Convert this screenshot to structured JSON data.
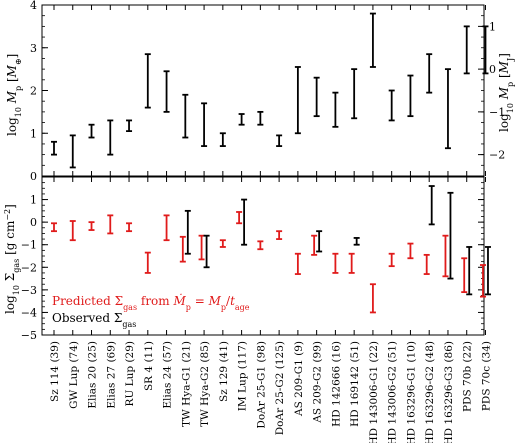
{
  "chart_data": [
    {
      "type": "errorbar",
      "panel": "top",
      "ylabel": "log₁₀ M_p [M⊕]",
      "ylabel_right": "log₁₀ M_p [M_J]",
      "ylim": [
        0,
        4
      ],
      "yticks": [
        0,
        1,
        2,
        3,
        4
      ],
      "yticks_right": [
        -2,
        -1,
        0,
        1
      ],
      "right_axis_offset": 2.5,
      "series": [
        {
          "color": "#000000",
          "intervals": [
            [
              0.5,
              0.8
            ],
            [
              0.2,
              0.95
            ],
            [
              0.9,
              1.2
            ],
            [
              0.5,
              1.3
            ],
            [
              1.05,
              1.3
            ],
            [
              1.6,
              2.85
            ],
            [
              1.5,
              2.45
            ],
            [
              0.9,
              1.9
            ],
            [
              0.7,
              1.7
            ],
            [
              0.7,
              1.0
            ],
            [
              1.2,
              1.45
            ],
            [
              1.2,
              1.5
            ],
            [
              0.7,
              0.95
            ],
            [
              1.0,
              2.55
            ],
            [
              1.4,
              2.3
            ],
            [
              1.15,
              1.95
            ],
            [
              1.35,
              2.5
            ],
            [
              2.55,
              3.8
            ],
            [
              1.3,
              2.0
            ],
            [
              1.4,
              2.35
            ],
            [
              1.95,
              2.85
            ],
            [
              0.65,
              2.5
            ],
            [
              2.4,
              3.5
            ],
            [
              2.4,
              3.5
            ]
          ]
        }
      ]
    },
    {
      "type": "errorbar",
      "panel": "bottom",
      "ylabel": "log₁₀ Σ_gas [g cm⁻²]",
      "ylim": [
        -5,
        2
      ],
      "yticks": [
        -5,
        -4,
        -3,
        -2,
        -1,
        0,
        1
      ],
      "categories": [
        "Sz 114 (39)",
        "GW Lup (74)",
        "Elias 20 (25)",
        "Elias 27 (69)",
        "RU Lup (29)",
        "SR 4 (11)",
        "Elias 24 (57)",
        "TW Hya-G1 (21)",
        "TW Hya-G2 (85)",
        "Sz 129 (41)",
        "IM Lup (117)",
        "DoAr 25-G1 (98)",
        "DoAr 25-G2 (125)",
        "AS 209-G1 (9)",
        "AS 209-G2 (99)",
        "HD 142666 (16)",
        "HD 169142 (51)",
        "HD 143006-G1 (22)",
        "HD 143006-G2 (51)",
        "HD 163296-G1 (10)",
        "HD 163296-G2 (48)",
        "HD 163296-G3 (86)",
        "PDS 70b (22)",
        "PDS 70c (34)"
      ],
      "legend": {
        "placement": "lower-left",
        "entries": [
          {
            "label": "Predicted Σgas from Ṁp = Mp/tage",
            "color": "#e01b1b"
          },
          {
            "label": "Observed Σgas",
            "color": "#000000"
          }
        ]
      },
      "series": [
        {
          "name": "Predicted",
          "color": "#e01b1b",
          "intervals": [
            [
              -0.4,
              -0.05
            ],
            [
              -0.8,
              0.05
            ],
            [
              -0.35,
              0.0
            ],
            [
              -0.5,
              0.3
            ],
            [
              -0.4,
              -0.05
            ],
            [
              -2.25,
              -1.35
            ],
            [
              -0.8,
              0.3
            ],
            [
              -1.75,
              -0.65
            ],
            [
              -1.65,
              -0.6
            ],
            [
              -1.1,
              -0.8
            ],
            [
              -0.05,
              0.45
            ],
            [
              -1.2,
              -0.85
            ],
            [
              -0.75,
              -0.4
            ],
            [
              -2.3,
              -1.4
            ],
            [
              -1.45,
              -0.6
            ],
            [
              -2.25,
              -1.4
            ],
            [
              -2.25,
              -1.4
            ],
            [
              -4.0,
              -2.75
            ],
            [
              -1.95,
              -1.4
            ],
            [
              -1.6,
              -0.95
            ],
            [
              -2.3,
              -1.45
            ],
            [
              -2.4,
              -0.6
            ],
            [
              -3.1,
              -1.6
            ],
            [
              -3.3,
              -1.9
            ]
          ]
        },
        {
          "name": "Observed",
          "color": "#000000",
          "intervals": [
            null,
            null,
            null,
            null,
            null,
            null,
            null,
            [
              -1.4,
              0.5
            ],
            [
              -2.0,
              -0.6
            ],
            null,
            [
              -1.0,
              1.0
            ],
            null,
            null,
            null,
            [
              -1.3,
              -0.4
            ],
            null,
            [
              -1.0,
              -0.7
            ],
            null,
            null,
            null,
            [
              -0.1,
              1.6
            ],
            [
              -2.5,
              1.3
            ],
            [
              -3.2,
              -1.1
            ],
            [
              -3.2,
              -1.1
            ]
          ]
        }
      ]
    }
  ]
}
